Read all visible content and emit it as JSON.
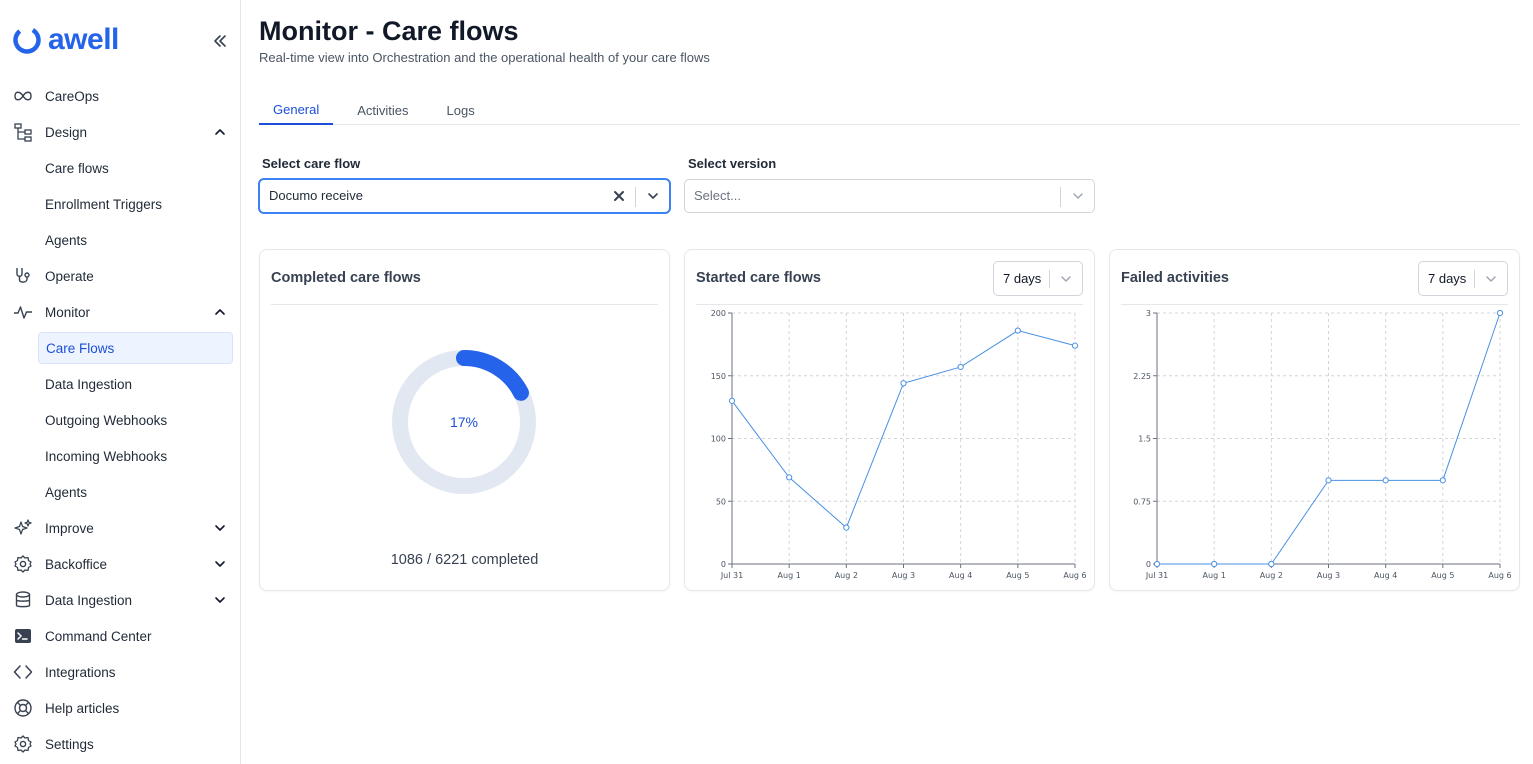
{
  "brand": {
    "name": "awell",
    "color": "#2563eb"
  },
  "sidebar": {
    "items": [
      {
        "label": "CareOps",
        "icon": "infinity-icon"
      },
      {
        "label": "Design",
        "icon": "tree-structure-icon",
        "expanded": true,
        "children": [
          "Care flows",
          "Enrollment Triggers",
          "Agents"
        ]
      },
      {
        "label": "Operate",
        "icon": "stethoscope-icon"
      },
      {
        "label": "Monitor",
        "icon": "activity-pulse-icon",
        "expanded": true,
        "children": [
          "Care Flows",
          "Data Ingestion",
          "Outgoing Webhooks",
          "Incoming Webhooks",
          "Agents"
        ],
        "active_child": "Care Flows"
      },
      {
        "label": "Improve",
        "icon": "sparkles-icon",
        "expanded": false
      },
      {
        "label": "Backoffice",
        "icon": "gear-icon",
        "expanded": false
      },
      {
        "label": "Data Ingestion",
        "icon": "database-icon",
        "expanded": false
      },
      {
        "label": "Command Center",
        "icon": "terminal-icon"
      },
      {
        "label": "Integrations",
        "icon": "code-brackets-icon"
      },
      {
        "label": "Help articles",
        "icon": "lifebuoy-icon"
      },
      {
        "label": "Settings",
        "icon": "gear-icon"
      }
    ]
  },
  "header": {
    "title": "Monitor - Care flows",
    "subtitle": "Real-time view into Orchestration and the operational health of your care flows"
  },
  "tabs": [
    {
      "label": "General",
      "active": true
    },
    {
      "label": "Activities",
      "active": false
    },
    {
      "label": "Logs",
      "active": false
    }
  ],
  "filters": {
    "care_flow": {
      "label": "Select care flow",
      "value": "Documo receive"
    },
    "version": {
      "label": "Select version",
      "placeholder": "Select..."
    }
  },
  "cards": {
    "completed": {
      "title": "Completed care flows",
      "percent_label": "17%",
      "completed": 1086,
      "total": 6221,
      "summary": "1086 / 6221 completed"
    },
    "started": {
      "title": "Started care flows",
      "range": "7 days"
    },
    "failed": {
      "title": "Failed activities",
      "range": "7 days"
    }
  },
  "chart_data": [
    {
      "type": "line",
      "title": "Started care flows",
      "categories": [
        "Jul 31",
        "Aug 1",
        "Aug 2",
        "Aug 3",
        "Aug 4",
        "Aug 5",
        "Aug 6"
      ],
      "values": [
        130,
        69,
        29,
        144,
        157,
        186,
        174
      ],
      "ylim": [
        0,
        200
      ],
      "yticks": [
        0,
        50,
        100,
        150,
        200
      ],
      "ytick_labels": [
        "0",
        "50",
        "100",
        "150",
        "200"
      ],
      "grid": true,
      "color": "#4a90e2"
    },
    {
      "type": "line",
      "title": "Failed activities",
      "categories": [
        "Jul 31",
        "Aug 1",
        "Aug 2",
        "Aug 3",
        "Aug 4",
        "Aug 5",
        "Aug 6"
      ],
      "values": [
        0,
        0,
        0,
        1,
        1,
        1,
        3
      ],
      "ylim": [
        0,
        3
      ],
      "yticks": [
        0,
        0.75,
        1.5,
        2.25,
        3
      ],
      "ytick_labels": [
        "0",
        "0.75",
        "1.5",
        "2.25",
        "3"
      ],
      "grid": true,
      "color": "#4a90e2"
    }
  ]
}
